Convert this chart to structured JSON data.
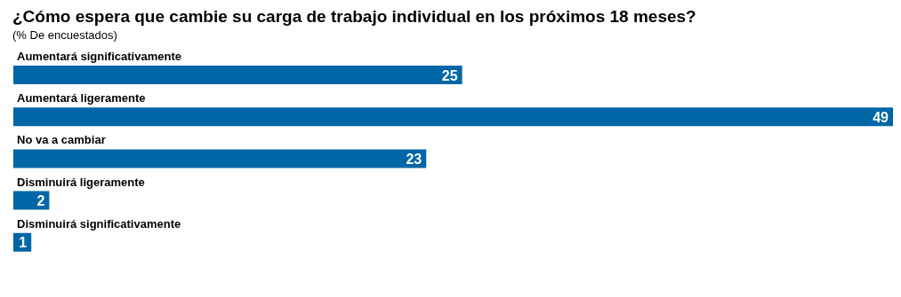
{
  "chart_data": {
    "type": "bar",
    "orientation": "horizontal",
    "title": "¿Cómo espera que cambie su carga de trabajo individual en los próximos 18 meses?",
    "subtitle": "(% De encuestados)",
    "categories": [
      "Aumentará significativamente",
      "Aumentará ligeramente",
      "No va a cambiar",
      "Disminuirá ligeramente",
      "Disminuirá significativamente"
    ],
    "values": [
      25,
      49,
      23,
      2,
      1
    ],
    "color": "#0066a6",
    "data_labels": true,
    "grid": false,
    "legend": false
  }
}
